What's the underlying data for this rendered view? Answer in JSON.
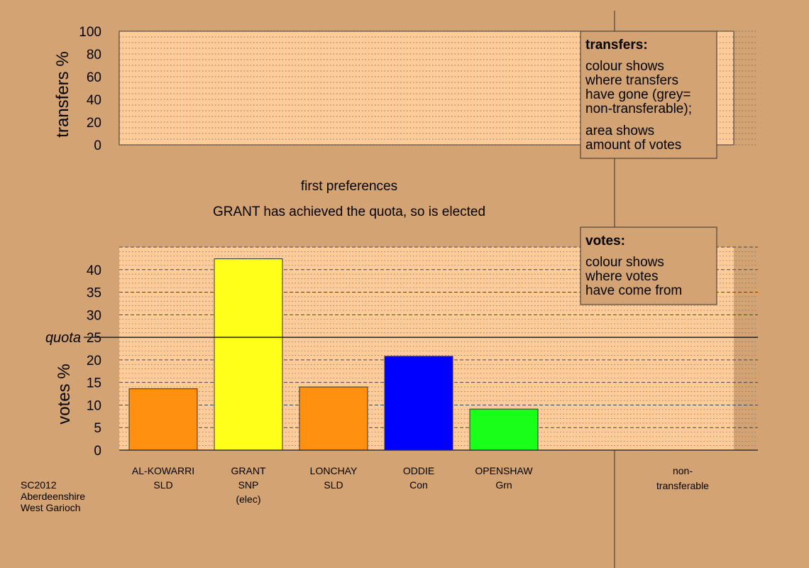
{
  "top_panel": {
    "ylabel": "transfers %",
    "yticks": [
      0,
      20,
      40,
      60,
      80,
      100
    ]
  },
  "transfers_box": {
    "title": "transfers:",
    "lines1": [
      "colour shows",
      "where transfers",
      "have gone (grey=",
      "non-transferable);"
    ],
    "lines2": [
      "area shows",
      "amount of votes"
    ]
  },
  "headings": {
    "stage": "first preferences",
    "status": "GRANT has achieved the quota, so is elected"
  },
  "votes_box": {
    "title": "votes:",
    "lines": [
      "colour shows",
      "where votes",
      "have come from"
    ]
  },
  "quota_label": "quota",
  "footer": [
    "SC2012",
    "Aberdeenshire",
    "West Garioch"
  ],
  "nontransferable_label": [
    "non-",
    "transferable"
  ],
  "colors": {
    "background": "#d4a373",
    "panel": "#ffcc99",
    "SLD": "#ff9010",
    "SNP": "#ffff19",
    "Con": "#0000ff",
    "Grn": "#1aff1a"
  },
  "chart_data": [
    {
      "type": "bar",
      "title": "",
      "xlabel": "",
      "ylabel": "transfers %",
      "ylim": [
        0,
        100
      ],
      "categories": [],
      "values": [],
      "grid": true
    },
    {
      "type": "bar",
      "title": "first preferences",
      "ylabel": "votes %",
      "ylim": [
        0,
        45
      ],
      "yticks": [
        0,
        5,
        10,
        15,
        20,
        25,
        30,
        35,
        40
      ],
      "quota": 25,
      "grid": true,
      "categories": [
        {
          "name": "AL-KOWARRI",
          "party": "SLD",
          "note": "",
          "value": 13.6,
          "color": "#ff9010"
        },
        {
          "name": "GRANT",
          "party": "SNP",
          "note": "(elec)",
          "value": 42.4,
          "color": "#ffff19"
        },
        {
          "name": "LONCHAY",
          "party": "SLD",
          "note": "",
          "value": 14.0,
          "color": "#ff9010"
        },
        {
          "name": "ODDIE",
          "party": "Con",
          "note": "",
          "value": 20.8,
          "color": "#0000ff"
        },
        {
          "name": "OPENSHAW",
          "party": "Grn",
          "note": "",
          "value": 9.1,
          "color": "#1aff1a"
        }
      ]
    }
  ]
}
